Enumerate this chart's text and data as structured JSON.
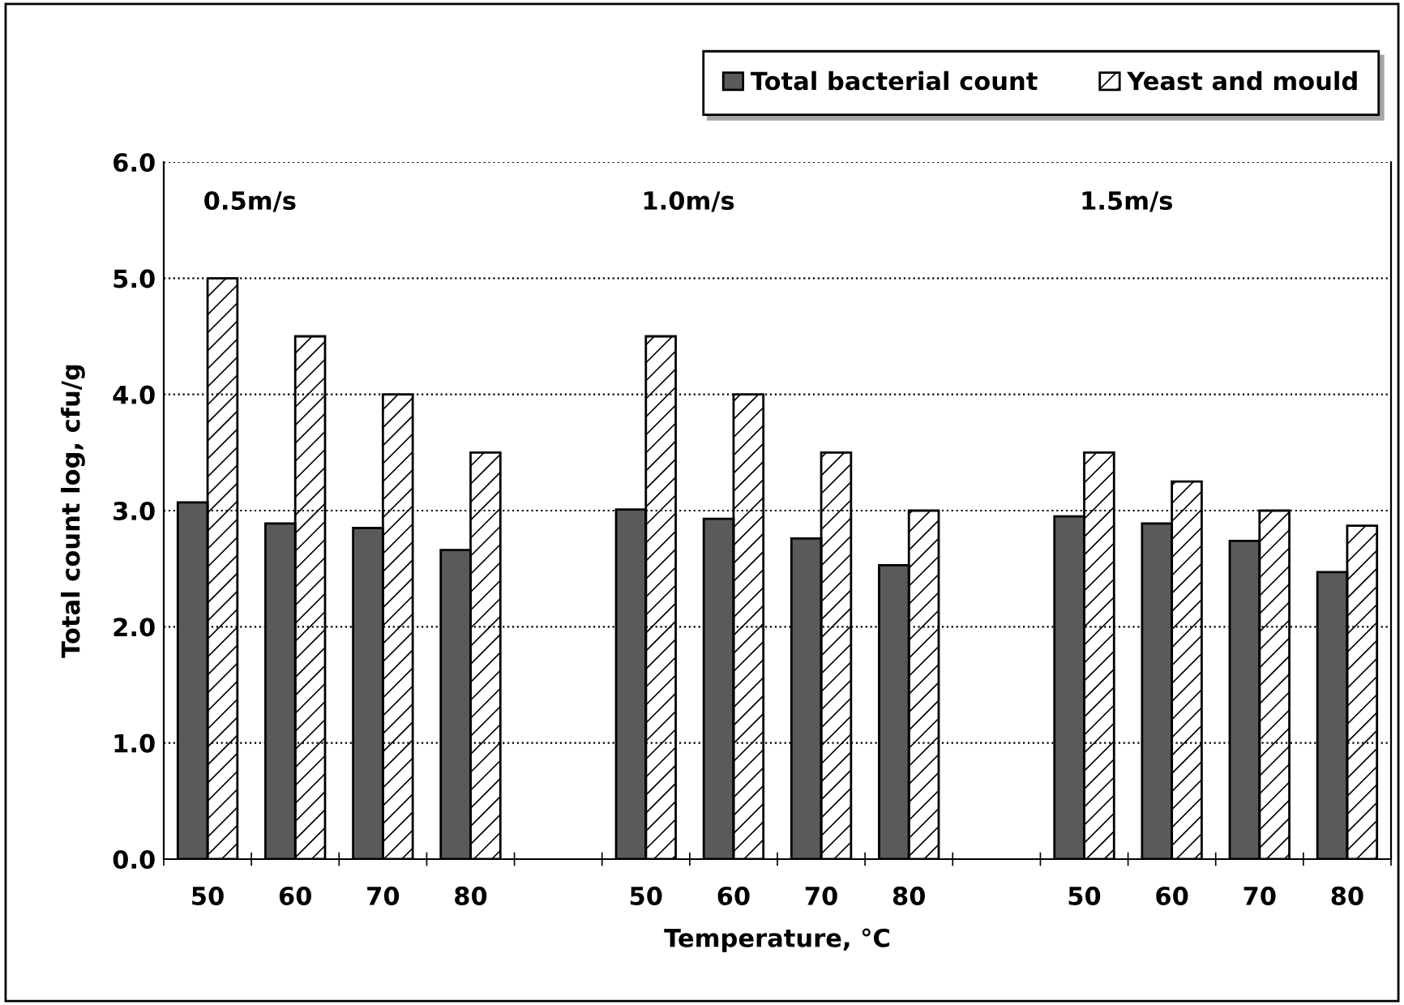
{
  "chart_data": {
    "type": "bar",
    "xlabel": "Temperature, °C",
    "ylabel": "Total count log, cfu/g",
    "categories": [
      "50",
      "60",
      "70",
      "80",
      null,
      "50",
      "60",
      "70",
      "80",
      null,
      "50",
      "60",
      "70",
      "80"
    ],
    "series": [
      {
        "name": "Total bacterial count",
        "color": "#5a5a5a",
        "values": [
          3.07,
          2.89,
          2.85,
          2.66,
          null,
          3.01,
          2.93,
          2.76,
          2.53,
          null,
          2.95,
          2.89,
          2.74,
          2.47
        ]
      },
      {
        "name": "Yeast and mould",
        "color": "#000000",
        "values": [
          5.0,
          4.5,
          4.0,
          3.5,
          null,
          4.5,
          4.0,
          3.5,
          3.0,
          null,
          3.5,
          3.25,
          3.0,
          2.87
        ]
      }
    ],
    "annotations": [
      "0.5m/s",
      "1.0m/s",
      "1.5m/s"
    ],
    "ylim": [
      0,
      6
    ],
    "yticks": [
      {
        "value": 0,
        "label": "0.0"
      },
      {
        "value": 1,
        "label": "1.0"
      },
      {
        "value": 2,
        "label": "2.0"
      },
      {
        "value": 3,
        "label": "3.0"
      },
      {
        "value": 4,
        "label": "4.0"
      },
      {
        "value": 5,
        "label": "5.0"
      },
      {
        "value": 6,
        "label": "6.0"
      }
    ],
    "grid": "y",
    "legend": "top right"
  }
}
